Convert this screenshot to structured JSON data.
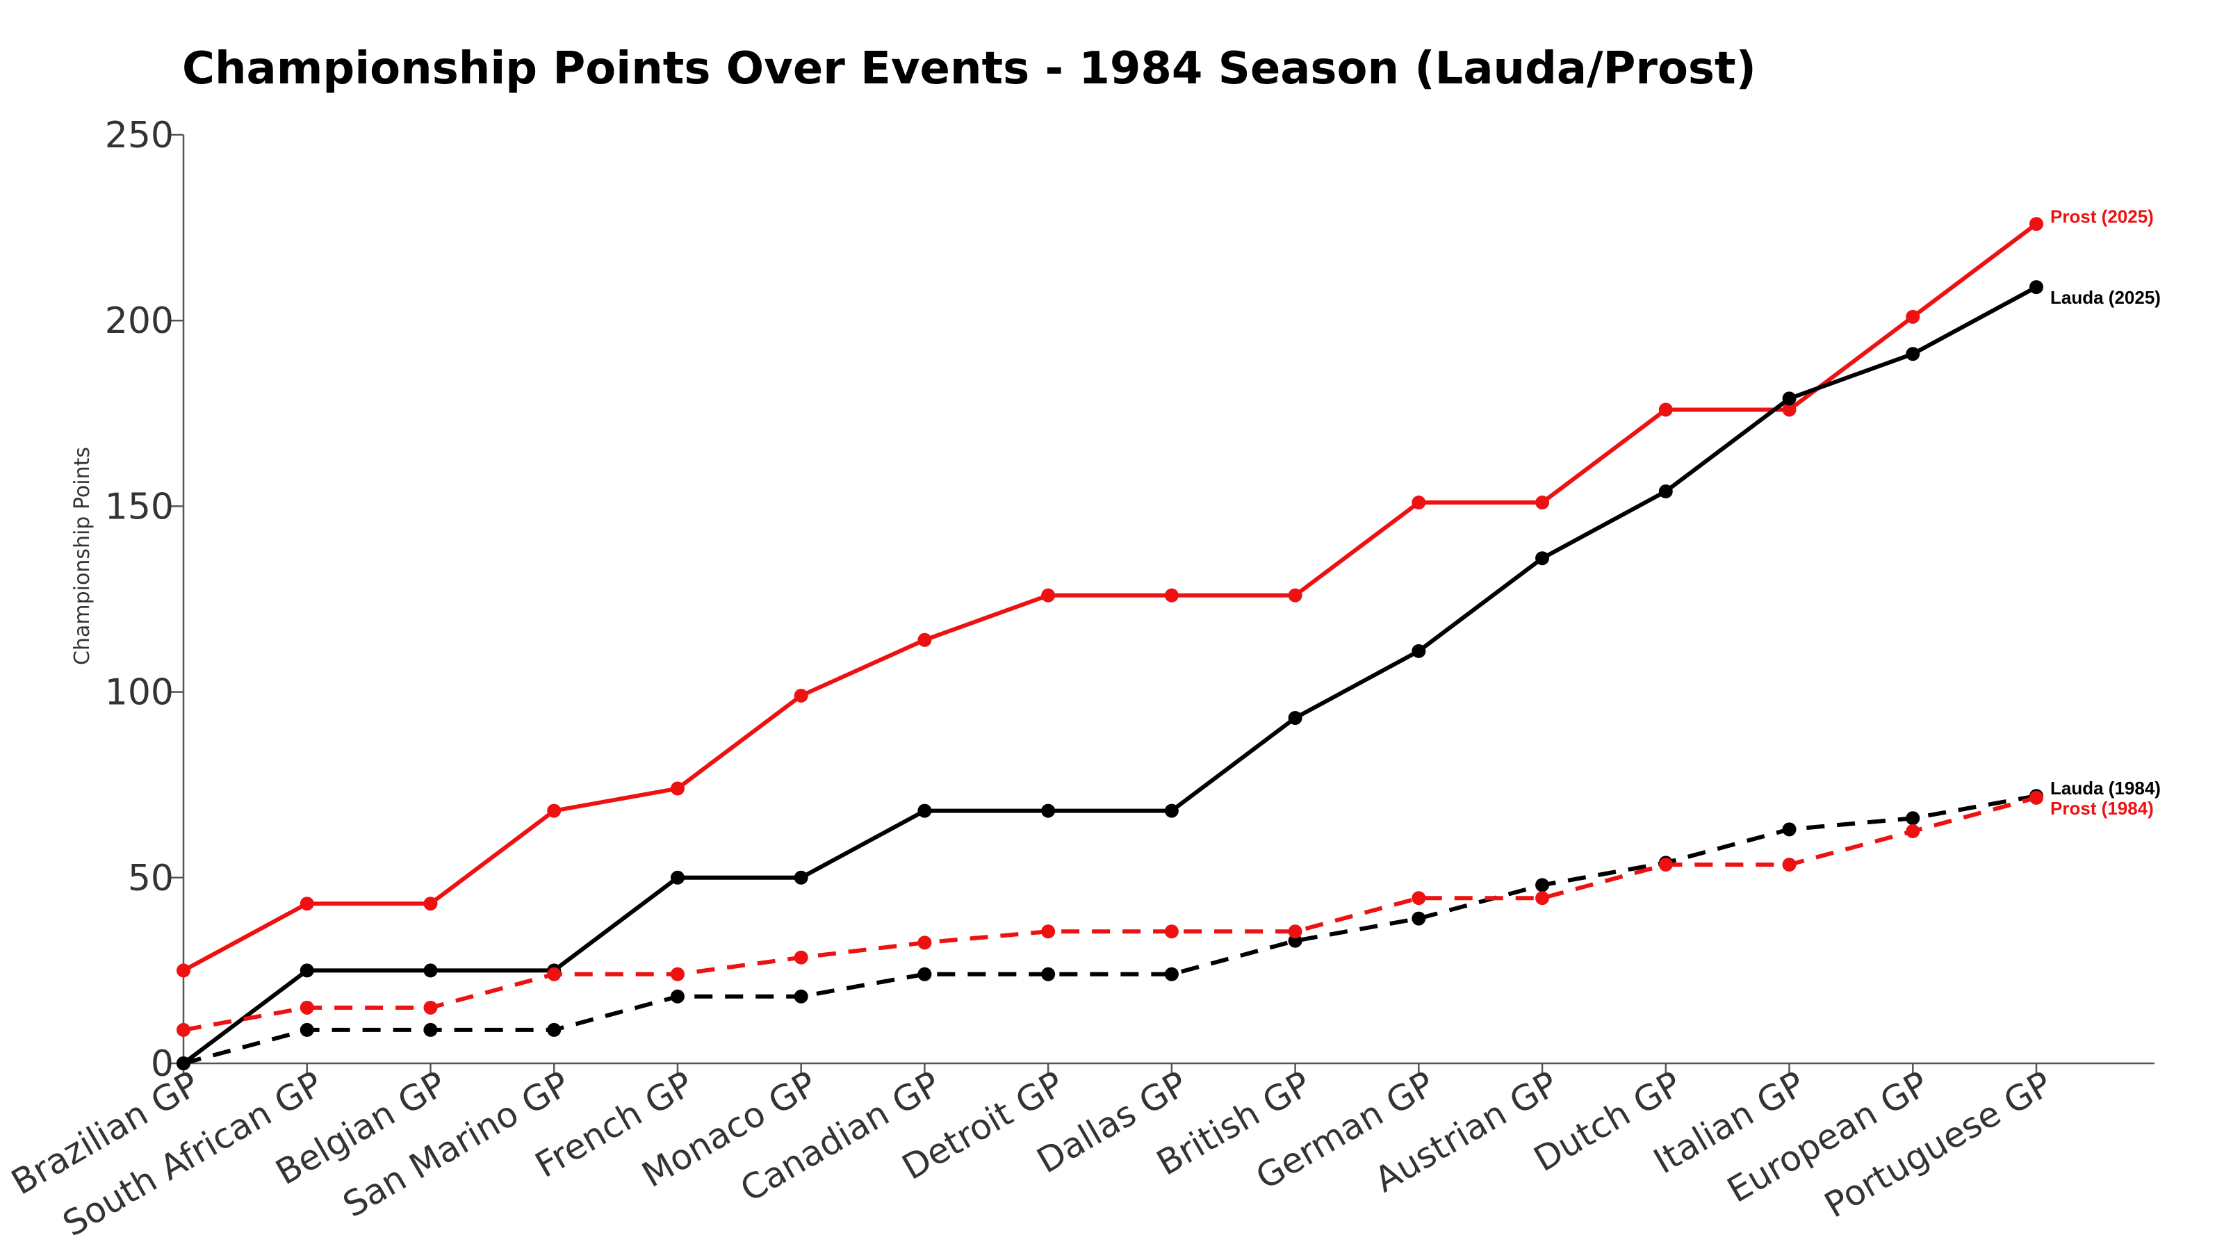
{
  "chart_data": {
    "type": "line",
    "title": "Championship Points Over Events - 1984 Season (Lauda/Prost)",
    "xlabel": "",
    "ylabel": "Championship Points",
    "ylim": [
      0,
      250
    ],
    "yticks": [
      0,
      50,
      100,
      150,
      200,
      250
    ],
    "categories": [
      "Brazilian GP",
      "South African GP",
      "Belgian GP",
      "San Marino GP",
      "French GP",
      "Monaco GP",
      "Canadian GP",
      "Detroit GP",
      "Dallas GP",
      "British GP",
      "German GP",
      "Austrian GP",
      "Dutch GP",
      "Italian GP",
      "European GP",
      "Portuguese GP"
    ],
    "grid": false,
    "legend": "none",
    "series": [
      {
        "name": "Prost (2025)",
        "color": "#ee1111",
        "style": "solid",
        "values": [
          25,
          43,
          43,
          68,
          74,
          99,
          114,
          126,
          126,
          126,
          151,
          151,
          176,
          176,
          201,
          226
        ]
      },
      {
        "name": "Lauda (2025)",
        "color": "#000000",
        "style": "solid",
        "values": [
          0,
          25,
          25,
          25,
          50,
          50,
          68,
          68,
          68,
          93,
          111,
          136,
          154,
          179,
          191,
          209
        ]
      },
      {
        "name": "Lauda (1984)",
        "color": "#000000",
        "style": "dashed",
        "values": [
          0,
          9,
          9,
          9,
          18,
          18,
          24,
          24,
          24,
          33,
          39,
          48,
          54,
          63,
          66,
          72
        ]
      },
      {
        "name": "Prost (1984)",
        "color": "#ee1111",
        "style": "dashed",
        "values": [
          9,
          15,
          15,
          24,
          24,
          28.5,
          32.5,
          35.5,
          35.5,
          35.5,
          44.5,
          44.5,
          53.5,
          53.5,
          62.5,
          71.5
        ]
      }
    ]
  }
}
